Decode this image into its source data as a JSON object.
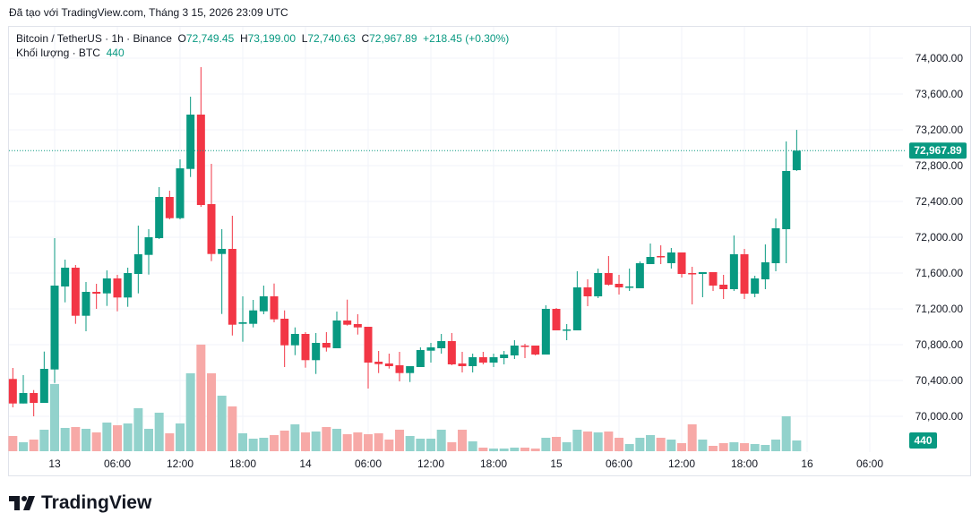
{
  "caption": "Đã tạo với TradingView.com, Tháng 3 15, 2026 23:09 UTC",
  "legend": {
    "symbol": "Bitcoin / TetherUS · 1h · Binance",
    "open_label": "O",
    "open": "72,749.45",
    "high_label": "H",
    "high": "73,199.00",
    "low_label": "L",
    "low": "72,740.63",
    "close_label": "C",
    "close": "72,967.89",
    "change": "+218.45 (+0.30%)",
    "volume_label": "Khối lượng · BTC",
    "volume": "440"
  },
  "logo": {
    "text": "TradingView"
  },
  "colors": {
    "up": "#089981",
    "down": "#f23645",
    "up_volume": "#92d2cc",
    "down_volume": "#f7a9a7",
    "grid": "#f0f3fa"
  },
  "chart_data": {
    "type": "candlestick",
    "interval": "1h",
    "first_candle": "12 20:00",
    "ylim": [
      69600,
      74400
    ],
    "grid": true,
    "y_ticks": [
      "74,000.00",
      "73,600.00",
      "73,200.00",
      "72,800.00",
      "72,400.00",
      "72,000.00",
      "71,600.00",
      "71,200.00",
      "70,800.00",
      "70,400.00",
      "70,000.00"
    ],
    "y_tick_values": [
      74000,
      73600,
      73200,
      72800,
      72400,
      72000,
      71600,
      71200,
      70800,
      70400,
      70000
    ],
    "x_ticks": [
      {
        "label": "13",
        "hour": 0
      },
      {
        "label": "06:00",
        "hour": 6
      },
      {
        "label": "12:00",
        "hour": 12
      },
      {
        "label": "18:00",
        "hour": 18
      },
      {
        "label": "14",
        "hour": 24
      },
      {
        "label": "06:00",
        "hour": 30
      },
      {
        "label": "12:00",
        "hour": 36
      },
      {
        "label": "18:00",
        "hour": 42
      },
      {
        "label": "15",
        "hour": 48
      },
      {
        "label": "06:00",
        "hour": 54
      },
      {
        "label": "12:00",
        "hour": 60
      },
      {
        "label": "18:00",
        "hour": 66
      },
      {
        "label": "16",
        "hour": 72
      },
      {
        "label": "06:00",
        "hour": 78
      }
    ],
    "last_price_label": "72,967.89",
    "last_price": 72967.89,
    "last_volume_label": "440",
    "candles_ohlcv": [
      [
        70417,
        70540,
        70100,
        70143,
        624
      ],
      [
        70143,
        70460,
        70143,
        70260,
        367
      ],
      [
        70260,
        70293,
        70000,
        70150,
        477
      ],
      [
        70150,
        70723,
        70150,
        70530,
        881
      ],
      [
        70523,
        71990,
        70373,
        71460,
        2753
      ],
      [
        71450,
        71750,
        71273,
        71660,
        954
      ],
      [
        71660,
        71690,
        71033,
        71123,
        991
      ],
      [
        71123,
        71500,
        70950,
        71390,
        918
      ],
      [
        71390,
        71480,
        71200,
        71370,
        771
      ],
      [
        71373,
        71630,
        71233,
        71540,
        1174
      ],
      [
        71540,
        71580,
        71173,
        71327,
        1064
      ],
      [
        71327,
        71660,
        71223,
        71600,
        1138
      ],
      [
        71590,
        72130,
        71373,
        71810,
        1762
      ],
      [
        71803,
        72090,
        71583,
        72000,
        918
      ],
      [
        71990,
        72560,
        71980,
        72450,
        1578
      ],
      [
        72450,
        72520,
        72200,
        72213,
        734
      ],
      [
        72213,
        72870,
        72200,
        72770,
        1138
      ],
      [
        72763,
        73570,
        72673,
        73370,
        3193
      ],
      [
        73370,
        73900,
        72340,
        72360,
        4367
      ],
      [
        72370,
        72820,
        71733,
        71813,
        3193
      ],
      [
        71813,
        72090,
        71143,
        71870,
        2275
      ],
      [
        71870,
        72240,
        70903,
        71023,
        1835
      ],
      [
        71033,
        71340,
        70833,
        71050,
        734
      ],
      [
        71033,
        71300,
        70993,
        71183,
        514
      ],
      [
        71173,
        71460,
        71140,
        71340,
        551
      ],
      [
        71340,
        71483,
        71050,
        71083,
        661
      ],
      [
        71090,
        71183,
        70550,
        70793,
        844
      ],
      [
        70793,
        70993,
        70683,
        70920,
        1101
      ],
      [
        70920,
        70940,
        70543,
        70627,
        771
      ],
      [
        70627,
        70930,
        70473,
        70820,
        807
      ],
      [
        70820,
        70940,
        70723,
        70767,
        991
      ],
      [
        70760,
        71170,
        70760,
        71070,
        918
      ],
      [
        71070,
        71303,
        71013,
        71023,
        697
      ],
      [
        71030,
        71140,
        70913,
        70993,
        771
      ],
      [
        71000,
        71000,
        70310,
        70600,
        697
      ],
      [
        70610,
        70730,
        70483,
        70583,
        734
      ],
      [
        70590,
        70700,
        70533,
        70560,
        477
      ],
      [
        70570,
        70720,
        70390,
        70483,
        881
      ],
      [
        70483,
        70560,
        70383,
        70560,
        624
      ],
      [
        70550,
        70770,
        70550,
        70740,
        514
      ],
      [
        70733,
        70820,
        70600,
        70770,
        514
      ],
      [
        70760,
        70920,
        70700,
        70840,
        881
      ],
      [
        70840,
        70930,
        70570,
        70580,
        367
      ],
      [
        70590,
        70720,
        70490,
        70560,
        881
      ],
      [
        70560,
        70700,
        70490,
        70660,
        404
      ],
      [
        70660,
        70720,
        70580,
        70600,
        147
      ],
      [
        70600,
        70700,
        70550,
        70660,
        110
      ],
      [
        70650,
        70730,
        70580,
        70690,
        110
      ],
      [
        70680,
        70850,
        70640,
        70790,
        147
      ],
      [
        70790,
        70810,
        70650,
        70780,
        147
      ],
      [
        70790,
        70790,
        70680,
        70690,
        110
      ],
      [
        70690,
        71240,
        70690,
        71200,
        551
      ],
      [
        71200,
        71210,
        70960,
        70960,
        587
      ],
      [
        70960,
        71030,
        70850,
        70970,
        367
      ],
      [
        70960,
        71620,
        70960,
        71440,
        881
      ],
      [
        71440,
        71530,
        71230,
        71340,
        807
      ],
      [
        71340,
        71650,
        71320,
        71600,
        771
      ],
      [
        71600,
        71790,
        71460,
        71470,
        807
      ],
      [
        71480,
        71580,
        71360,
        71440,
        551
      ],
      [
        71440,
        71650,
        71400,
        71450,
        294
      ],
      [
        71430,
        71730,
        71430,
        71710,
        551
      ],
      [
        71700,
        71930,
        71700,
        71780,
        661
      ],
      [
        71790,
        71910,
        71700,
        71780,
        551
      ],
      [
        71710,
        71880,
        71650,
        71830,
        477
      ],
      [
        71830,
        71830,
        71550,
        71590,
        330
      ],
      [
        71600,
        71670,
        71250,
        71590,
        1101
      ],
      [
        71590,
        71610,
        71330,
        71610,
        477
      ],
      [
        71610,
        71610,
        71400,
        71460,
        220
      ],
      [
        71470,
        71580,
        71310,
        71420,
        330
      ],
      [
        71420,
        72020,
        71400,
        71810,
        367
      ],
      [
        71810,
        71870,
        71310,
        71370,
        330
      ],
      [
        71370,
        71570,
        71330,
        71540,
        294
      ],
      [
        71530,
        71920,
        71420,
        71720,
        257
      ],
      [
        71710,
        72210,
        71620,
        72100,
        477
      ],
      [
        72090,
        73070,
        71710,
        72740,
        1431
      ],
      [
        72749.45,
        73199,
        72740.63,
        72967.89,
        440
      ]
    ]
  }
}
